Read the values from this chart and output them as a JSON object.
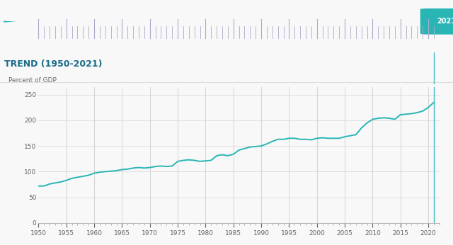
{
  "title": "TREND (1950-2021)",
  "ylabel": "Percent of GDP",
  "title_color": "#1a6b8a",
  "line_color": "#2ab5b5",
  "background_color": "#f8f8f8",
  "grid_color": "#cccccc",
  "xlabel_color": "#666666",
  "ylabel_color": "#666666",
  "ylim": [
    0,
    265
  ],
  "yticks": [
    0,
    50,
    100,
    150,
    200,
    250
  ],
  "xlim": [
    1950,
    2022
  ],
  "xticks": [
    1950,
    1955,
    1960,
    1965,
    1970,
    1975,
    1980,
    1985,
    1990,
    1995,
    2000,
    2005,
    2010,
    2015,
    2020
  ],
  "current_year": 2021,
  "current_year_label": "2021",
  "current_year_color": "#2ab5b5",
  "timeline_tick_color": "#aaaacc",
  "marker_color": "#2ab5b5",
  "data": {
    "years": [
      1950,
      1951,
      1952,
      1953,
      1954,
      1955,
      1956,
      1957,
      1958,
      1959,
      1960,
      1961,
      1962,
      1963,
      1964,
      1965,
      1966,
      1967,
      1968,
      1969,
      1970,
      1971,
      1972,
      1973,
      1974,
      1975,
      1976,
      1977,
      1978,
      1979,
      1980,
      1981,
      1982,
      1983,
      1984,
      1985,
      1986,
      1987,
      1988,
      1989,
      1990,
      1991,
      1992,
      1993,
      1994,
      1995,
      1996,
      1997,
      1998,
      1999,
      2000,
      2001,
      2002,
      2003,
      2004,
      2005,
      2006,
      2007,
      2008,
      2009,
      2010,
      2011,
      2012,
      2013,
      2014,
      2015,
      2016,
      2017,
      2018,
      2019,
      2020,
      2021
    ],
    "values": [
      72,
      72,
      76,
      78,
      80,
      83,
      87,
      89,
      91,
      93,
      97,
      99,
      100,
      101,
      102,
      104,
      105,
      107,
      108,
      107,
      108,
      110,
      111,
      110,
      111,
      120,
      122,
      123,
      122,
      120,
      121,
      122,
      131,
      133,
      131,
      134,
      142,
      145,
      148,
      149,
      150,
      154,
      159,
      163,
      163,
      165,
      165,
      163,
      163,
      162,
      165,
      166,
      165,
      165,
      165,
      168,
      170,
      172,
      185,
      195,
      202,
      204,
      205,
      204,
      202,
      211,
      212,
      213,
      215,
      218,
      225,
      235
    ]
  },
  "vgrid_years": [
    1955,
    1960,
    1965,
    1970,
    1975,
    1980,
    1985,
    1990,
    1995,
    2000,
    2005,
    2010,
    2015,
    2020
  ]
}
